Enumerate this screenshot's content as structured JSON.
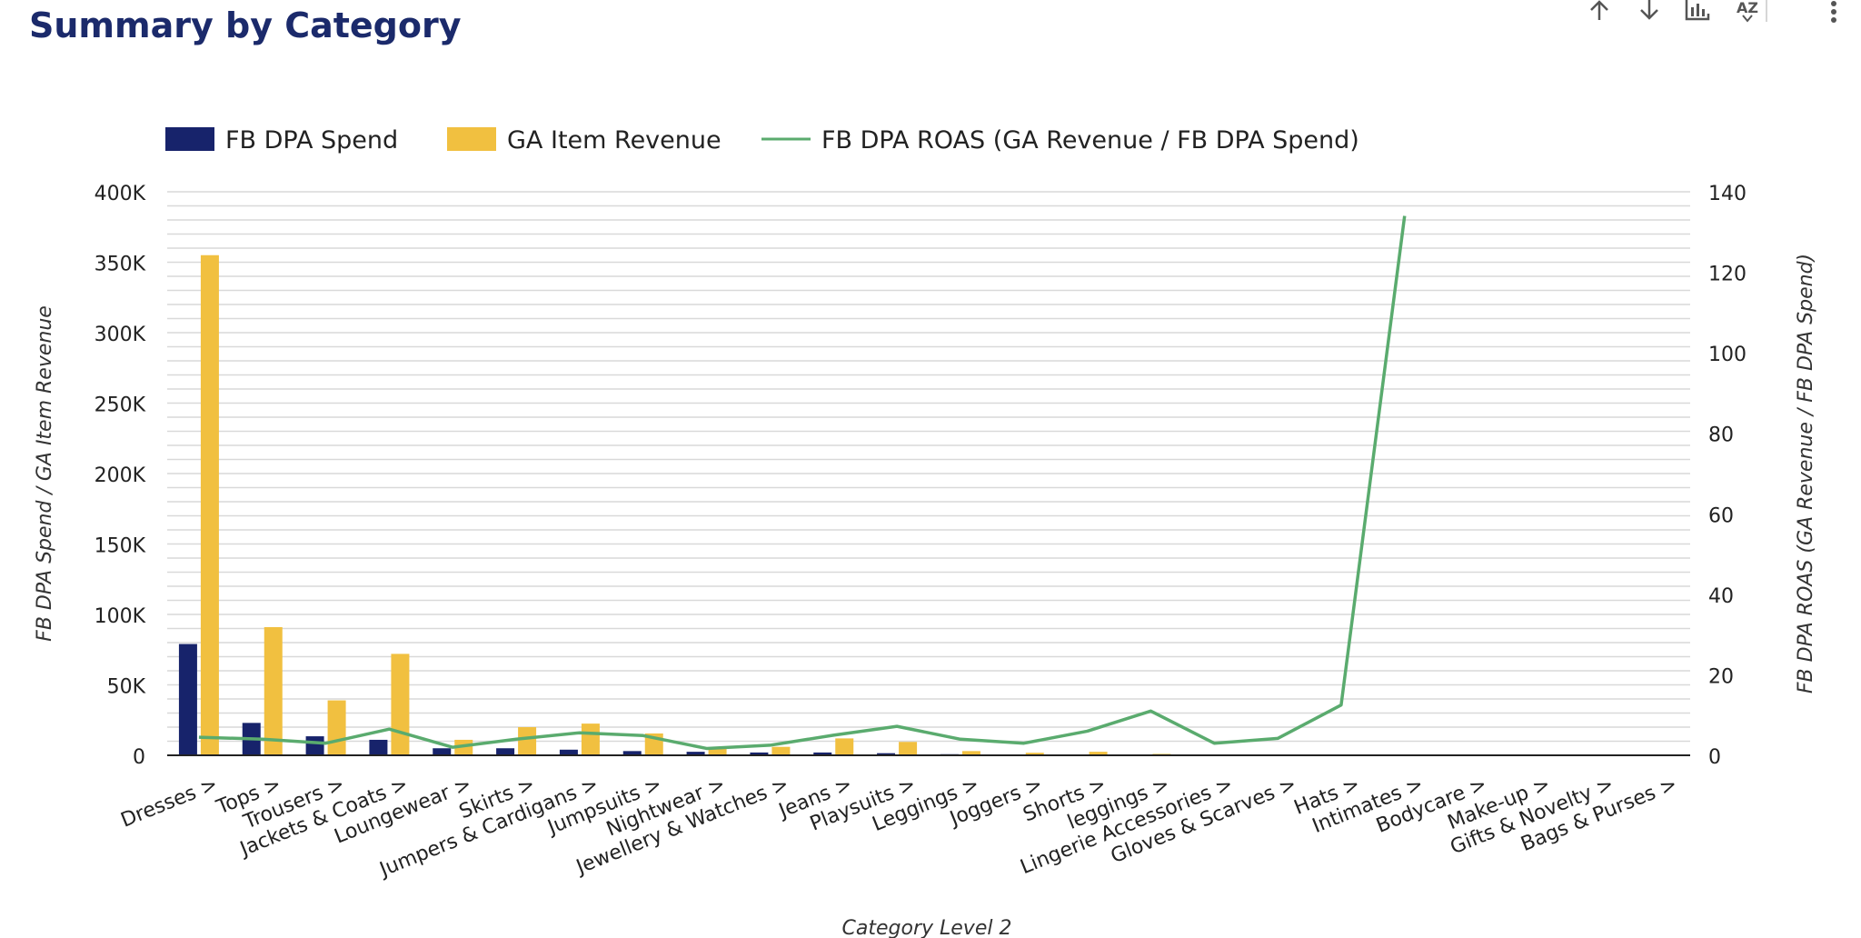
{
  "title": "Summary by Category",
  "toolbar": {
    "sort_asc_icon": "arrow-up-icon",
    "sort_desc_icon": "arrow-down-icon",
    "drill_icon": "chart-drill-icon",
    "sort_az_label": "AZ",
    "more_icon": "more-vert-icon"
  },
  "colors": {
    "title": "#1b2a6b",
    "spend": "#17236b",
    "revenue": "#f1c040",
    "roas": "#5aab6e",
    "grid": "#d9d9d9",
    "axis": "#222222"
  },
  "chart_data": {
    "type": "bar",
    "title": "Summary by Category",
    "xlabel": "Category Level 2",
    "ylabel": "FB DPA Spend / GA Item Revenue",
    "y2label": "FB DPA ROAS (GA Revenue / FB DPA Spend)",
    "ylim": [
      0,
      400000
    ],
    "y2lim": [
      0,
      140
    ],
    "yticks": [
      "0",
      "50K",
      "100K",
      "150K",
      "200K",
      "250K",
      "300K",
      "350K",
      "400K"
    ],
    "y2ticks": [
      "0",
      "20",
      "40",
      "60",
      "80",
      "100",
      "120",
      "140"
    ],
    "legend_position": "top-left",
    "categories": [
      "Dresses >",
      "Tops >",
      "Trousers >",
      "Jackets & Coats >",
      "Loungewear >",
      "Skirts >",
      "Jumpers & Cardigans >",
      "Jumpsuits >",
      "Nightwear >",
      "Jewellery & Watches >",
      "Jeans >",
      "Playsuits >",
      "Leggings >",
      "Joggers >",
      "Shorts >",
      "leggings >",
      "Lingerie Accessories >",
      "Gloves & Scarves >",
      "Hats >",
      "Intimates >",
      "Bodycare >",
      "Make-up >",
      "Gifts & Novelty >",
      "Bags & Purses >"
    ],
    "series": [
      {
        "name": "FB DPA Spend",
        "kind": "bar",
        "axis": "left",
        "values": [
          79000,
          23000,
          13500,
          11000,
          5000,
          5000,
          4000,
          3000,
          2500,
          2000,
          2000,
          1500,
          800,
          600,
          400,
          100,
          0,
          0,
          0,
          0,
          0,
          0,
          0,
          0
        ]
      },
      {
        "name": "GA Item Revenue",
        "kind": "bar",
        "axis": "left",
        "values": [
          355000,
          91000,
          39000,
          72000,
          11000,
          20000,
          22500,
          15500,
          5000,
          6000,
          12000,
          9500,
          3000,
          1800,
          2500,
          1000,
          0,
          0,
          0,
          0,
          0,
          0,
          0,
          0
        ]
      },
      {
        "name": "FB DPA ROAS (GA Revenue / FB DPA Spend)",
        "kind": "line",
        "axis": "right",
        "values": [
          4.5,
          4,
          3,
          6.5,
          2,
          4,
          5.6,
          4.9,
          1.7,
          2.5,
          5,
          7.2,
          4,
          3,
          6,
          11,
          3,
          4.2,
          12.5,
          134,
          null,
          null,
          null,
          null
        ]
      }
    ]
  }
}
